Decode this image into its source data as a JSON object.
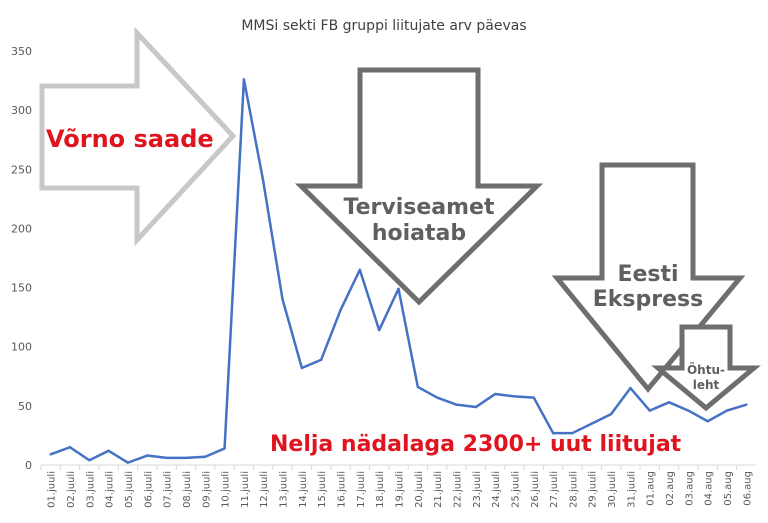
{
  "chart_data": {
    "type": "line",
    "title": "MMSi sekti FB gruppi liitujate arv päevas",
    "xlabel": "",
    "ylabel": "",
    "ylim": [
      0,
      350
    ],
    "yticks": [
      0,
      50,
      100,
      150,
      200,
      250,
      300,
      350
    ],
    "grid": false,
    "legend": "none",
    "colors": {
      "line": "#4472c4",
      "red_text": "#e0141e",
      "arrow_grey": "#6e6e6e",
      "arrow_light": "#c8c8c8"
    },
    "categories": [
      "01.juuli",
      "02.juuli",
      "03.juuli",
      "04.juuli",
      "05.juuli",
      "06.juuli",
      "07.juuli",
      "08.juuli",
      "09.juuli",
      "10.juuli",
      "11.juuli",
      "12.juuli",
      "13.juuli",
      "14.juuli",
      "15.juuli",
      "16.juuli",
      "17.juuli",
      "18.juuli",
      "19.juuli",
      "20.juuli",
      "21.juuli",
      "22.juuli",
      "23.juuli",
      "24.juuli",
      "25.juuli",
      "26.juuli",
      "27.juuli",
      "28.juuli",
      "29.juuli",
      "30.juuli",
      "31.juuli",
      "01.aug",
      "02.aug",
      "03.aug",
      "04.aug",
      "05.aug",
      "06.aug"
    ],
    "series": [
      {
        "values": [
          9,
          15,
          4,
          12,
          2,
          8,
          6,
          6,
          7,
          14,
          326,
          240,
          140,
          82,
          89,
          131,
          165,
          114,
          149,
          66,
          57,
          51,
          49,
          60,
          58,
          57,
          27,
          27,
          35,
          43,
          65,
          46,
          53,
          46,
          37,
          46,
          51
        ]
      }
    ],
    "annotations": {
      "vorno": "Võrno saade",
      "terviseamet_1": "Terviseamet",
      "terviseamet_2": "hoiatab",
      "eesti_1": "Eesti",
      "eesti_2": "Ekspress",
      "ohtu_1": "Õhtu-",
      "ohtu_2": "leht",
      "summary": "Nelja nädalaga 2300+ uut liitujat"
    }
  }
}
